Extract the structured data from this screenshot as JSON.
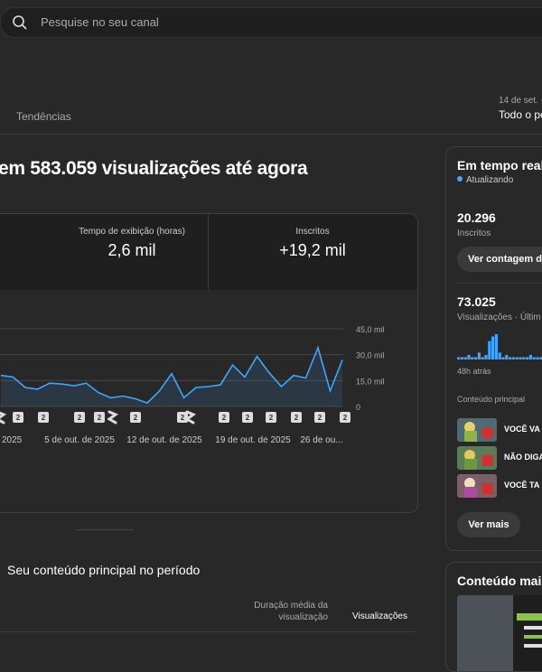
{
  "search": {
    "placeholder": "Pesquise no seu canal",
    "icon": "search-icon"
  },
  "tabs": {
    "trends": "Tendências"
  },
  "date": {
    "range": "14 de set. -",
    "period": "Todo o pe"
  },
  "headline": "em 583.059 visualizações até agora",
  "metrics": [
    {
      "label": "Tempo de exibição (horas)",
      "value": "2,6 mil"
    },
    {
      "label": "Inscritos",
      "value": "+19,2 mil"
    }
  ],
  "chart_data": {
    "type": "line",
    "y_ticks": [
      "45,0 mil",
      "30,0 mil",
      "15,0 mil",
      "0"
    ],
    "ylim": [
      0,
      45000
    ],
    "x_labels": [
      "2025",
      "5 de out. de 2025",
      "12 de out. de 2025",
      "19 de out. de 2025",
      "26 de ou..."
    ],
    "series": [
      {
        "values": [
          18000,
          17000,
          11000,
          10000,
          13500,
          13000,
          12000,
          13500,
          8000,
          5000,
          6000,
          4500,
          2000,
          9000,
          19000,
          5000,
          11000,
          11500,
          12500,
          24000,
          17000,
          29000,
          19500,
          11500,
          18000,
          16500,
          34000,
          9000,
          27000
        ]
      }
    ],
    "marker_labels": [
      "2",
      "2",
      "2",
      "2",
      "2",
      "2",
      "2",
      "2",
      "2",
      "2",
      "2",
      "2"
    ],
    "accent": "#3ea6ff"
  },
  "section_title": "Seu conteúdo principal no período",
  "table": {
    "col_duration": "Duração média da visualização",
    "col_views": "Visualizações"
  },
  "realtime": {
    "title": "Em tempo real",
    "status": "Atualizando",
    "subscribers": "20.296",
    "subscribers_label": "Inscritos",
    "see_count_button": "Ver contagem de",
    "views": "73.025",
    "views_label": "Visualizações · Últim",
    "bars": [
      1,
      1,
      1,
      2,
      1,
      1,
      3,
      1,
      2,
      8,
      10,
      11,
      3,
      1,
      2,
      1,
      1,
      1,
      1,
      1,
      1,
      2,
      1,
      1,
      1,
      1,
      1,
      1,
      1,
      1,
      1
    ],
    "ago_label": "48h atrás",
    "content_title": "Conteúdo principal",
    "items": [
      {
        "title": "VOCÊ VA"
      },
      {
        "title": "NÃO DIGA"
      },
      {
        "title": "VOCÊ TA"
      }
    ],
    "more_button": "Ver mais"
  },
  "content_more": {
    "title": "Conteúdo mais"
  }
}
